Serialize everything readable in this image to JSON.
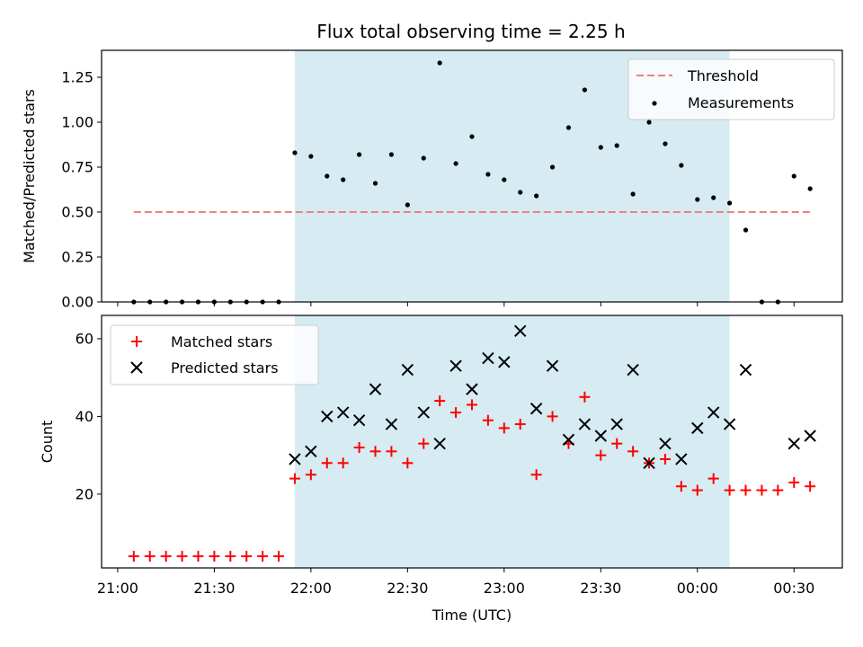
{
  "title": "Flux total observing time = 2.25 h",
  "chart_data": [
    {
      "type": "scatter",
      "name": "ratio-panel",
      "ylabel": "Matched/Predicted stars",
      "ylim": [
        0,
        1.4
      ],
      "yticks": [
        0.0,
        0.25,
        0.5,
        0.75,
        1.0,
        1.25
      ],
      "ytick_labels": [
        "0.00",
        "0.25",
        "0.50",
        "0.75",
        "1.00",
        "1.25"
      ],
      "legend_position": "top-right",
      "threshold": {
        "name": "Threshold",
        "value": 0.5,
        "x_start": "21:05",
        "x_end": "00:35",
        "color": "#f08080"
      },
      "series": [
        {
          "name": "Measurements",
          "color": "#000000",
          "x": [
            "21:05",
            "21:10",
            "21:15",
            "21:20",
            "21:25",
            "21:30",
            "21:35",
            "21:40",
            "21:45",
            "21:50",
            "21:55",
            "22:00",
            "22:05",
            "22:10",
            "22:15",
            "22:20",
            "22:25",
            "22:30",
            "22:35",
            "22:40",
            "22:45",
            "22:50",
            "22:55",
            "23:00",
            "23:05",
            "23:10",
            "23:15",
            "23:20",
            "23:25",
            "23:30",
            "23:35",
            "23:40",
            "23:45",
            "23:50",
            "23:55",
            "00:00",
            "00:05",
            "00:10",
            "00:15",
            "00:20",
            "00:25",
            "00:30",
            "00:35"
          ],
          "y": [
            0,
            0,
            0,
            0,
            0,
            0,
            0,
            0,
            0,
            0,
            0.83,
            0.81,
            0.7,
            0.68,
            0.82,
            0.66,
            0.82,
            0.54,
            0.8,
            1.33,
            0.77,
            0.92,
            0.71,
            0.68,
            0.61,
            0.59,
            0.75,
            0.97,
            1.18,
            0.86,
            0.87,
            0.6,
            1.0,
            0.88,
            0.76,
            0.57,
            0.58,
            0.55,
            0.4,
            0,
            0,
            0.7,
            0.63
          ]
        }
      ]
    },
    {
      "type": "scatter",
      "name": "count-panel",
      "xlabel": "Time (UTC)",
      "ylabel": "Count",
      "ylim": [
        1,
        66
      ],
      "yticks": [
        20,
        40,
        60
      ],
      "ytick_labels": [
        "20",
        "40",
        "60"
      ],
      "xticks": [
        "21:00",
        "21:30",
        "22:00",
        "22:30",
        "23:00",
        "23:30",
        "00:00",
        "00:30"
      ],
      "legend_position": "top-left",
      "series": [
        {
          "name": "Matched stars",
          "marker": "plus",
          "color": "#ff0000",
          "x": [
            "21:05",
            "21:10",
            "21:15",
            "21:20",
            "21:25",
            "21:30",
            "21:35",
            "21:40",
            "21:45",
            "21:50",
            "21:55",
            "22:00",
            "22:05",
            "22:10",
            "22:15",
            "22:20",
            "22:25",
            "22:30",
            "22:35",
            "22:40",
            "22:45",
            "22:50",
            "22:55",
            "23:00",
            "23:05",
            "23:10",
            "23:15",
            "23:20",
            "23:25",
            "23:30",
            "23:35",
            "23:40",
            "23:45",
            "23:50",
            "23:55",
            "00:00",
            "00:05",
            "00:10",
            "00:15",
            "00:20",
            "00:25",
            "00:30",
            "00:35"
          ],
          "y": [
            4,
            4,
            4,
            4,
            4,
            4,
            4,
            4,
            4,
            4,
            24,
            25,
            28,
            28,
            32,
            31,
            31,
            28,
            33,
            44,
            41,
            43,
            39,
            37,
            38,
            25,
            40,
            33,
            45,
            30,
            33,
            31,
            28,
            29,
            22,
            21,
            24,
            21,
            21,
            21,
            21,
            23,
            22
          ]
        },
        {
          "name": "Predicted stars",
          "marker": "x",
          "color": "#000000",
          "x": [
            "21:55",
            "22:00",
            "22:05",
            "22:10",
            "22:15",
            "22:20",
            "22:25",
            "22:30",
            "22:35",
            "22:40",
            "22:45",
            "22:50",
            "22:55",
            "23:00",
            "23:05",
            "23:10",
            "23:15",
            "23:20",
            "23:25",
            "23:30",
            "23:35",
            "23:40",
            "23:45",
            "23:50",
            "23:55",
            "00:00",
            "00:05",
            "00:10",
            "00:15",
            "00:30",
            "00:35"
          ],
          "y": [
            29,
            31,
            40,
            41,
            39,
            47,
            38,
            52,
            41,
            33,
            53,
            47,
            55,
            54,
            62,
            42,
            53,
            34,
            38,
            35,
            38,
            52,
            28,
            33,
            29,
            37,
            41,
            38,
            52,
            33,
            35
          ]
        }
      ]
    }
  ],
  "observing_window": {
    "start": "21:55",
    "end": "00:10",
    "color": "#add8e6"
  },
  "x_domain": [
    "20:55",
    "00:45"
  ]
}
